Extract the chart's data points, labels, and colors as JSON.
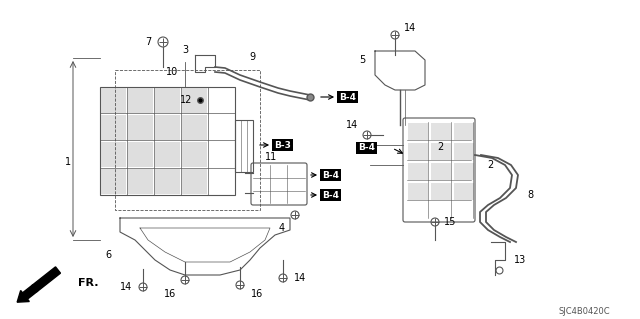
{
  "background_color": "#ffffff",
  "diagram_code": "SJC4B0420C",
  "gray": "#555555",
  "dark": "#222222",
  "figsize": [
    6.4,
    3.19
  ],
  "dpi": 100
}
